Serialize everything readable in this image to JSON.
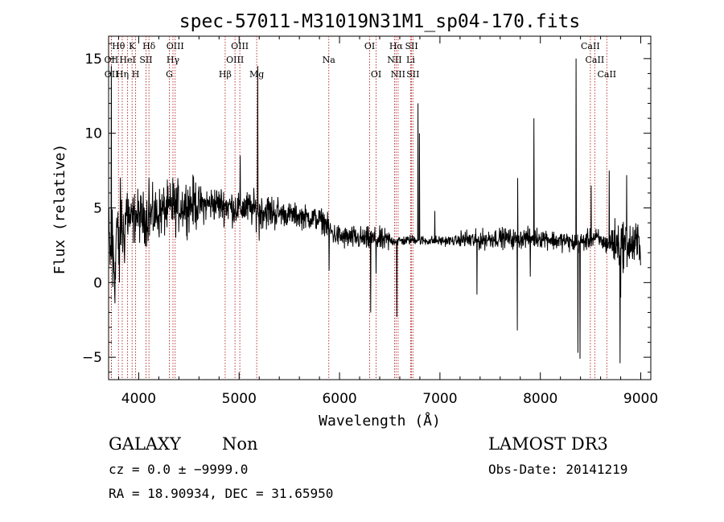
{
  "chart_data": {
    "type": "line",
    "title": "spec-57011-M31019N31M1_sp04-170.fits",
    "xlabel": "Wavelength (Å)",
    "ylabel": "Flux (relative)",
    "xlim": [
      3700,
      9100
    ],
    "ylim": [
      -6.5,
      16.5
    ],
    "x_ticks": [
      4000,
      5000,
      6000,
      7000,
      8000,
      9000
    ],
    "y_ticks": [
      -5,
      0,
      5,
      10,
      15
    ],
    "x_tick_labels": [
      "4000",
      "5000",
      "6000",
      "7000",
      "8000",
      "9000"
    ],
    "y_tick_labels": [
      "−5",
      "0",
      "5",
      "10",
      "15"
    ],
    "colors": {
      "spectrum": "#000000",
      "line_marker": "#b22222",
      "axes": "#000000"
    },
    "spectrum_anchors": [
      [
        3700,
        3.0
      ],
      [
        3720,
        1.5
      ],
      [
        3740,
        3.5
      ],
      [
        3760,
        0.5
      ],
      [
        3780,
        4.0
      ],
      [
        3800,
        2.0
      ],
      [
        3820,
        4.5
      ],
      [
        3850,
        3.0
      ],
      [
        3880,
        5.0
      ],
      [
        3920,
        4.0
      ],
      [
        3970,
        4.5
      ],
      [
        4050,
        4.3
      ],
      [
        4150,
        4.5
      ],
      [
        4250,
        4.8
      ],
      [
        4350,
        5.0
      ],
      [
        4450,
        5.2
      ],
      [
        4550,
        5.3
      ],
      [
        4650,
        5.2
      ],
      [
        4750,
        5.3
      ],
      [
        4850,
        5.2
      ],
      [
        4950,
        5.0
      ],
      [
        5050,
        5.0
      ],
      [
        5150,
        4.9
      ],
      [
        5250,
        4.8
      ],
      [
        5350,
        4.7
      ],
      [
        5450,
        4.6
      ],
      [
        5550,
        4.5
      ],
      [
        5650,
        4.4
      ],
      [
        5750,
        4.3
      ],
      [
        5850,
        4.1
      ],
      [
        5900,
        3.5
      ],
      [
        5950,
        3.2
      ],
      [
        6050,
        3.0
      ],
      [
        6150,
        3.0
      ],
      [
        6250,
        2.9
      ],
      [
        6350,
        2.9
      ],
      [
        6450,
        2.8
      ],
      [
        6550,
        2.8
      ],
      [
        6650,
        2.8
      ],
      [
        6750,
        2.9
      ],
      [
        6850,
        2.8
      ],
      [
        6950,
        2.8
      ],
      [
        7050,
        2.8
      ],
      [
        7150,
        2.8
      ],
      [
        7250,
        2.9
      ],
      [
        7350,
        2.8
      ],
      [
        7450,
        2.9
      ],
      [
        7550,
        3.0
      ],
      [
        7650,
        3.0
      ],
      [
        7750,
        2.9
      ],
      [
        7850,
        3.0
      ],
      [
        7950,
        3.0
      ],
      [
        8050,
        3.0
      ],
      [
        8150,
        2.8
      ],
      [
        8250,
        2.8
      ],
      [
        8350,
        2.6
      ],
      [
        8450,
        2.8
      ],
      [
        8550,
        3.0
      ],
      [
        8650,
        2.6
      ],
      [
        8750,
        2.6
      ],
      [
        8850,
        2.6
      ],
      [
        8950,
        2.5
      ],
      [
        9000,
        2.7
      ]
    ],
    "noise_segments": [
      {
        "from": 3700,
        "to": 3900,
        "amp": 2.0
      },
      {
        "from": 3900,
        "to": 4600,
        "amp": 1.3
      },
      {
        "from": 4600,
        "to": 5400,
        "amp": 0.9
      },
      {
        "from": 5400,
        "to": 5900,
        "amp": 0.6
      },
      {
        "from": 5900,
        "to": 6500,
        "amp": 0.6
      },
      {
        "from": 6500,
        "to": 7200,
        "amp": 0.25
      },
      {
        "from": 7200,
        "to": 8700,
        "amp": 0.5
      },
      {
        "from": 8700,
        "to": 9000,
        "amp": 1.2
      }
    ],
    "spikes": [
      [
        3728,
        14.5
      ],
      [
        3741,
        -0.3
      ],
      [
        3770,
        0.2
      ],
      [
        3808,
        0.0
      ],
      [
        3890,
        3.5
      ],
      [
        4103,
        7.0
      ],
      [
        4340,
        7.0
      ],
      [
        5010,
        8.5
      ],
      [
        5185,
        14.5
      ],
      [
        5200,
        2.8
      ],
      [
        5895,
        0.8
      ],
      [
        6310,
        -2.0
      ],
      [
        6365,
        0.6
      ],
      [
        6570,
        -2.3
      ],
      [
        6782,
        12.0
      ],
      [
        6796,
        10.0
      ],
      [
        6810,
        2.6
      ],
      [
        6950,
        4.8
      ],
      [
        7370,
        -0.8
      ],
      [
        7770,
        -3.2
      ],
      [
        7775,
        7.0
      ],
      [
        7900,
        0.4
      ],
      [
        7935,
        11.0
      ],
      [
        8355,
        15.0
      ],
      [
        8375,
        -4.7
      ],
      [
        8395,
        -5.1
      ],
      [
        8505,
        6.5
      ],
      [
        8685,
        7.5
      ],
      [
        8720,
        3.5
      ],
      [
        8795,
        -5.4
      ],
      [
        8800,
        -1.0
      ],
      [
        8860,
        7.2
      ],
      [
        8895,
        2.0
      ]
    ],
    "lines": [
      {
        "label": "OII",
        "wave": 3727,
        "row": 2
      },
      {
        "label": "OII",
        "wave": 3729,
        "row": 3
      },
      {
        "label": "Hθ",
        "wave": 3798,
        "row": 1
      },
      {
        "label": "Hη",
        "wave": 3836,
        "row": 3
      },
      {
        "label": "HeI",
        "wave": 3889,
        "row": 2
      },
      {
        "label": "K",
        "wave": 3934,
        "row": 1
      },
      {
        "label": "H",
        "wave": 3969,
        "row": 3
      },
      {
        "label": "Hδ",
        "wave": 4102,
        "row": 1
      },
      {
        "label": "SII",
        "wave": 4072,
        "row": 2
      },
      {
        "label": "OIII",
        "wave": 4363,
        "row": 1
      },
      {
        "label": "Hγ",
        "wave": 4341,
        "row": 2
      },
      {
        "label": "G",
        "wave": 4305,
        "row": 3
      },
      {
        "label": "Hβ",
        "wave": 4861,
        "row": 3
      },
      {
        "label": "OIII",
        "wave": 5007,
        "row": 1
      },
      {
        "label": "OIII",
        "wave": 4959,
        "row": 2
      },
      {
        "label": "Mg",
        "wave": 5175,
        "row": 3
      },
      {
        "label": "Na",
        "wave": 5893,
        "row": 2
      },
      {
        "label": "OI",
        "wave": 6300,
        "row": 1
      },
      {
        "label": "OI",
        "wave": 6364,
        "row": 3
      },
      {
        "label": "Hα",
        "wave": 6563,
        "row": 1
      },
      {
        "label": "NII",
        "wave": 6548,
        "row": 2
      },
      {
        "label": "NII",
        "wave": 6583,
        "row": 3
      },
      {
        "label": "SII",
        "wave": 6717,
        "row": 1
      },
      {
        "label": "Li",
        "wave": 6708,
        "row": 2
      },
      {
        "label": "SII",
        "wave": 6731,
        "row": 3
      },
      {
        "label": "CaII",
        "wave": 8498,
        "row": 1
      },
      {
        "label": "CaII",
        "wave": 8542,
        "row": 2
      },
      {
        "label": "CaII",
        "wave": 8662,
        "row": 3
      }
    ]
  },
  "info": {
    "class": "GALAXY",
    "subclass": "Non",
    "survey": "LAMOST DR3",
    "cz": "cz = 0.0 ± −9999.0",
    "obs_date": "Obs-Date: 20141219",
    "coords": "RA =  18.90934, DEC =  31.65950"
  }
}
